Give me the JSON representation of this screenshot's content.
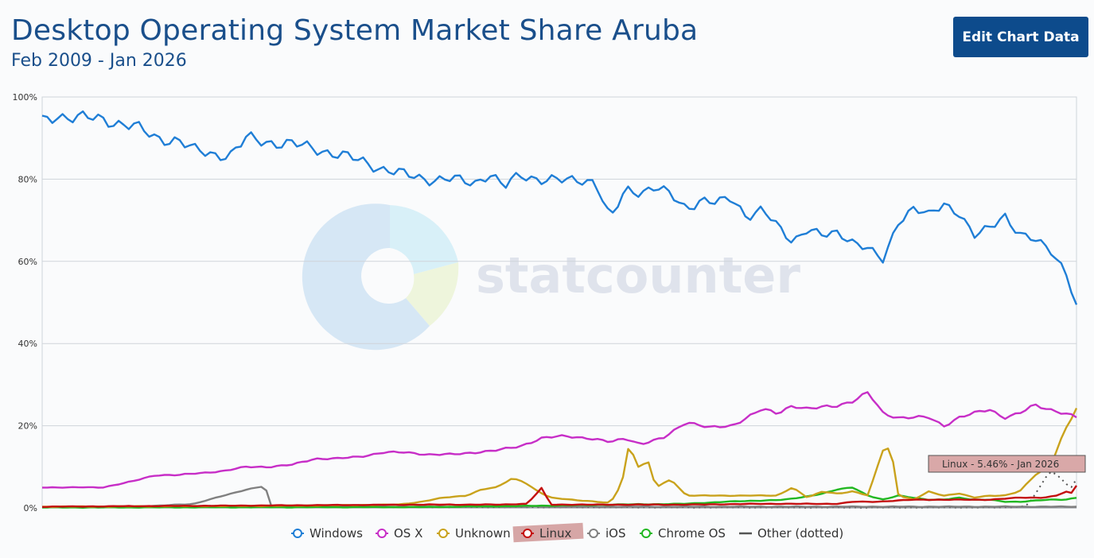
{
  "header": {
    "title": "Desktop Operating System Market Share Aruba",
    "subtitle": "Feb 2009 - Jan 2026",
    "edit_button": "Edit Chart Data"
  },
  "watermark": "statcounter",
  "tooltip": "Linux - 5.46% - Jan 2026",
  "chart_data": {
    "type": "line",
    "x_start": "Feb 2009",
    "x_end": "Jan 2026",
    "ylim": [
      0,
      100
    ],
    "yticks": [
      "0%",
      "20%",
      "40%",
      "60%",
      "80%",
      "100%"
    ],
    "grid": true,
    "legend_position": "bottom",
    "series": [
      {
        "name": "Windows",
        "color": "#1f7ed6",
        "dotted": false,
        "keypoints": [
          [
            0,
            94
          ],
          [
            4,
            95.5
          ],
          [
            10,
            95
          ],
          [
            16,
            94.5
          ],
          [
            24,
            93
          ],
          [
            30,
            90
          ],
          [
            36,
            89.5
          ],
          [
            40,
            87
          ],
          [
            46,
            86
          ],
          [
            50,
            86
          ],
          [
            54,
            90
          ],
          [
            60,
            89
          ],
          [
            66,
            88.5
          ],
          [
            72,
            87.5
          ],
          [
            78,
            86
          ],
          [
            84,
            84.5
          ],
          [
            90,
            82.5
          ],
          [
            96,
            81
          ],
          [
            102,
            80
          ],
          [
            108,
            80
          ],
          [
            114,
            79
          ],
          [
            118,
            81.5
          ],
          [
            122,
            78
          ],
          [
            126,
            81
          ],
          [
            132,
            80
          ],
          [
            138,
            79.5
          ],
          [
            142,
            80
          ],
          [
            146,
            79.5
          ],
          [
            150,
            70
          ],
          [
            154,
            77.5
          ],
          [
            158,
            77
          ],
          [
            162,
            78
          ],
          [
            166,
            76
          ],
          [
            170,
            73
          ],
          [
            174,
            75
          ],
          [
            178,
            74
          ],
          [
            182,
            75.5
          ],
          [
            186,
            71
          ],
          [
            190,
            72.5
          ],
          [
            194,
            68.5
          ],
          [
            198,
            65
          ],
          [
            202,
            68
          ],
          [
            206,
            66
          ],
          [
            210,
            67
          ],
          [
            214,
            65
          ],
          [
            218,
            63
          ],
          [
            222,
            60
          ],
          [
            226,
            70
          ],
          [
            230,
            73
          ],
          [
            234,
            71
          ],
          [
            238,
            74
          ],
          [
            242,
            72
          ],
          [
            246,
            66
          ],
          [
            250,
            68
          ],
          [
            254,
            71.5
          ],
          [
            258,
            66.5
          ],
          [
            262,
            65
          ],
          [
            266,
            63
          ],
          [
            270,
            58
          ],
          [
            273,
            49
          ]
        ]
      },
      {
        "name": "OS X",
        "color": "#c72ec7",
        "dotted": false,
        "keypoints": [
          [
            0,
            5
          ],
          [
            8,
            5
          ],
          [
            16,
            5
          ],
          [
            24,
            6.5
          ],
          [
            30,
            8
          ],
          [
            36,
            8
          ],
          [
            42,
            8.5
          ],
          [
            48,
            9
          ],
          [
            54,
            10
          ],
          [
            60,
            10
          ],
          [
            66,
            10.5
          ],
          [
            72,
            12
          ],
          [
            78,
            12
          ],
          [
            84,
            12.5
          ],
          [
            90,
            13.5
          ],
          [
            96,
            13.5
          ],
          [
            102,
            13
          ],
          [
            108,
            13
          ],
          [
            114,
            13.5
          ],
          [
            120,
            14
          ],
          [
            126,
            15
          ],
          [
            132,
            17
          ],
          [
            138,
            17.5
          ],
          [
            144,
            17
          ],
          [
            150,
            16
          ],
          [
            154,
            17
          ],
          [
            158,
            15.5
          ],
          [
            164,
            17
          ],
          [
            170,
            21
          ],
          [
            176,
            19.5
          ],
          [
            182,
            20
          ],
          [
            186,
            22
          ],
          [
            190,
            24
          ],
          [
            194,
            23
          ],
          [
            198,
            25
          ],
          [
            202,
            24
          ],
          [
            206,
            24.5
          ],
          [
            210,
            25
          ],
          [
            214,
            26
          ],
          [
            218,
            28
          ],
          [
            222,
            23
          ],
          [
            226,
            22
          ],
          [
            230,
            22
          ],
          [
            234,
            22
          ],
          [
            238,
            20
          ],
          [
            242,
            22
          ],
          [
            246,
            23
          ],
          [
            250,
            24
          ],
          [
            254,
            22
          ],
          [
            258,
            23
          ],
          [
            262,
            25
          ],
          [
            266,
            24
          ],
          [
            270,
            23
          ],
          [
            273,
            22
          ]
        ]
      },
      {
        "name": "Unknown",
        "color": "#c9a21c",
        "dotted": false,
        "keypoints": [
          [
            0,
            0.3
          ],
          [
            60,
            0.5
          ],
          [
            94,
            0.8
          ],
          [
            100,
            1.5
          ],
          [
            106,
            2.5
          ],
          [
            112,
            3
          ],
          [
            116,
            4.5
          ],
          [
            120,
            5
          ],
          [
            124,
            7.2
          ],
          [
            127,
            6.5
          ],
          [
            130,
            4.5
          ],
          [
            134,
            2.5
          ],
          [
            140,
            2
          ],
          [
            146,
            1.5
          ],
          [
            150,
            1.2
          ],
          [
            153,
            6
          ],
          [
            155,
            16
          ],
          [
            157,
            10
          ],
          [
            160,
            11
          ],
          [
            162,
            5
          ],
          [
            166,
            7
          ],
          [
            170,
            3
          ],
          [
            180,
            3
          ],
          [
            186,
            3
          ],
          [
            194,
            3
          ],
          [
            198,
            5
          ],
          [
            202,
            2.5
          ],
          [
            206,
            4
          ],
          [
            210,
            3.5
          ],
          [
            214,
            4
          ],
          [
            218,
            3
          ],
          [
            222,
            14.5
          ],
          [
            224,
            14.5
          ],
          [
            226,
            3
          ],
          [
            230,
            2
          ],
          [
            234,
            4
          ],
          [
            238,
            3
          ],
          [
            242,
            3.5
          ],
          [
            246,
            2.5
          ],
          [
            250,
            3
          ],
          [
            254,
            3
          ],
          [
            258,
            4
          ],
          [
            262,
            8
          ],
          [
            266,
            10
          ],
          [
            270,
            19
          ],
          [
            273,
            24
          ]
        ]
      },
      {
        "name": "Linux",
        "color": "#c40f0f",
        "dotted": false,
        "keypoints": [
          [
            0,
            0.3
          ],
          [
            40,
            0.5
          ],
          [
            80,
            0.7
          ],
          [
            100,
            0.8
          ],
          [
            120,
            0.8
          ],
          [
            128,
            1
          ],
          [
            132,
            5
          ],
          [
            134,
            0.8
          ],
          [
            150,
            0.8
          ],
          [
            170,
            0.8
          ],
          [
            190,
            1
          ],
          [
            210,
            1
          ],
          [
            214,
            1.5
          ],
          [
            220,
            1.5
          ],
          [
            230,
            2
          ],
          [
            240,
            2
          ],
          [
            250,
            2
          ],
          [
            258,
            2.5
          ],
          [
            264,
            2.5
          ],
          [
            268,
            3
          ],
          [
            270,
            4
          ],
          [
            272,
            3.5
          ],
          [
            273,
            5.46
          ]
        ]
      },
      {
        "name": "iOS",
        "color": "#808080",
        "dotted": false,
        "keypoints": [
          [
            0,
            0.2
          ],
          [
            20,
            0.3
          ],
          [
            30,
            0.5
          ],
          [
            40,
            1
          ],
          [
            46,
            2.5
          ],
          [
            50,
            3.5
          ],
          [
            54,
            4.5
          ],
          [
            58,
            5.2
          ],
          [
            59,
            5
          ],
          [
            60,
            0.3
          ],
          [
            273,
            0.3
          ]
        ]
      },
      {
        "name": "Chrome OS",
        "color": "#22b822",
        "dotted": false,
        "keypoints": [
          [
            0,
            0.1
          ],
          [
            100,
            0.2
          ],
          [
            130,
            0.5
          ],
          [
            150,
            0.8
          ],
          [
            170,
            1
          ],
          [
            180,
            1.5
          ],
          [
            190,
            1.8
          ],
          [
            196,
            2
          ],
          [
            200,
            2.5
          ],
          [
            206,
            3.5
          ],
          [
            210,
            4.5
          ],
          [
            214,
            5
          ],
          [
            218,
            3
          ],
          [
            222,
            2
          ],
          [
            226,
            3
          ],
          [
            230,
            2.5
          ],
          [
            234,
            2
          ],
          [
            238,
            2
          ],
          [
            242,
            2.5
          ],
          [
            246,
            2
          ],
          [
            250,
            2
          ],
          [
            254,
            1.5
          ],
          [
            258,
            1.5
          ],
          [
            262,
            1.8
          ],
          [
            266,
            2
          ],
          [
            270,
            2
          ],
          [
            273,
            2.5
          ]
        ]
      },
      {
        "name": "Other (dotted)",
        "color": "#555555",
        "dotted": true,
        "keypoints": [
          [
            0,
            0.2
          ],
          [
            30,
            0.3
          ],
          [
            46,
            0.5
          ],
          [
            60,
            0.3
          ],
          [
            100,
            0.2
          ],
          [
            200,
            0.1
          ],
          [
            255,
            0.1
          ],
          [
            260,
            0.5
          ],
          [
            264,
            6
          ],
          [
            266,
            9
          ],
          [
            268,
            8
          ],
          [
            270,
            6
          ],
          [
            272,
            5
          ],
          [
            273,
            7
          ]
        ]
      }
    ]
  }
}
